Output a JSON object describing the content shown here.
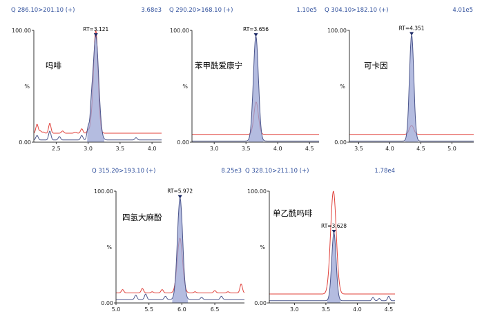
{
  "chart_data": [
    {
      "type": "line",
      "transition": "Q 286.10>201.10 (+)",
      "intensity": "3.68e3",
      "compound": "吗啡",
      "rt_label": "RT=3.121",
      "rt": 3.121,
      "xlim": [
        2.15,
        4.15
      ],
      "xticks": [
        "2.5",
        "3.0",
        "3.5",
        "4.0"
      ],
      "ylim": [
        0,
        100
      ],
      "yticks": [
        "100.00",
        "%",
        "0.00"
      ],
      "series": [
        {
          "color": "#e0403a",
          "baseline": 8,
          "peak_height": 100,
          "peak_x": 3.12,
          "peak_width": 0.035,
          "noise": [
            [
              2.2,
              16
            ],
            [
              2.25,
              10
            ],
            [
              2.3,
              9
            ],
            [
              2.4,
              17
            ],
            [
              2.5,
              8
            ],
            [
              2.6,
              10
            ],
            [
              2.8,
              9
            ],
            [
              2.9,
              12
            ],
            [
              3.0,
              11
            ],
            [
              3.05,
              14
            ]
          ]
        },
        {
          "color": "#4c568c",
          "baseline": 2,
          "peak_height": 95,
          "peak_x": 3.12,
          "peak_width": 0.045,
          "filled": true,
          "noise": [
            [
              2.2,
              6
            ],
            [
              2.4,
              10
            ],
            [
              2.55,
              5
            ],
            [
              2.9,
              6
            ],
            [
              3.0,
              12
            ],
            [
              3.05,
              16
            ],
            [
              3.75,
              4
            ]
          ]
        }
      ]
    },
    {
      "type": "line",
      "transition": "Q 290.20>168.10 (+)",
      "intensity": "1.10e5",
      "compound": "苯甲酰爱康宁",
      "rt_label": "RT=3.656",
      "rt": 3.656,
      "xlim": [
        2.65,
        4.65
      ],
      "xticks": [
        "3.0",
        "3.5",
        "4.0",
        "4.5"
      ],
      "ylim": [
        0,
        100
      ],
      "yticks": [
        "100.00",
        "%",
        "0.00"
      ],
      "series": [
        {
          "color": "#e0403a",
          "baseline": 7,
          "peak_height": 36,
          "peak_x": 3.66,
          "peak_width": 0.035,
          "noise": []
        },
        {
          "color": "#4c568c",
          "baseline": 1,
          "peak_height": 95,
          "peak_x": 3.656,
          "peak_width": 0.04,
          "filled": true,
          "noise": []
        }
      ]
    },
    {
      "type": "line",
      "transition": "Q 304.10>182.10 (+)",
      "intensity": "4.01e5",
      "compound": "可卡因",
      "rt_label": "RT=4.351",
      "rt": 4.351,
      "xlim": [
        3.35,
        5.35
      ],
      "xticks": [
        "3.5",
        "4.0",
        "4.5",
        "5.0"
      ],
      "ylim": [
        0,
        100
      ],
      "yticks": [
        "100.00",
        "%",
        "0.00"
      ],
      "series": [
        {
          "color": "#e0403a",
          "baseline": 7,
          "peak_height": 15,
          "peak_x": 4.35,
          "peak_width": 0.035,
          "noise": []
        },
        {
          "color": "#4c568c",
          "baseline": 1,
          "peak_height": 96,
          "peak_x": 4.351,
          "peak_width": 0.035,
          "filled": true,
          "noise": []
        }
      ]
    },
    {
      "type": "line",
      "transition": "Q 315.20>193.10 (+)",
      "intensity": "8.25e3",
      "compound": "四氢大麻酚",
      "rt_label": "RT=5.972",
      "rt": 5.972,
      "xlim": [
        5.0,
        6.95
      ],
      "xticks": [
        "5.0",
        "5.5",
        "6.0",
        "6.5"
      ],
      "ylim": [
        0,
        100
      ],
      "yticks": [
        "100.00",
        "%",
        "0.00"
      ],
      "series": [
        {
          "color": "#e0403a",
          "baseline": 9,
          "peak_height": 58,
          "peak_x": 5.97,
          "peak_width": 0.04,
          "noise": [
            [
              5.1,
              12
            ],
            [
              5.4,
              13
            ],
            [
              5.55,
              10
            ],
            [
              5.7,
              12
            ],
            [
              6.2,
              10
            ],
            [
              6.5,
              11
            ],
            [
              6.7,
              10
            ],
            [
              6.9,
              17
            ]
          ]
        },
        {
          "color": "#4c568c",
          "baseline": 3,
          "peak_height": 94,
          "peak_x": 5.972,
          "peak_width": 0.04,
          "filled": true,
          "noise": [
            [
              5.3,
              7
            ],
            [
              5.45,
              8
            ],
            [
              5.75,
              6
            ],
            [
              6.3,
              5
            ],
            [
              6.6,
              6
            ]
          ]
        }
      ]
    },
    {
      "type": "line",
      "transition": "Q 328.10>211.10 (+)",
      "intensity": "1.78e4",
      "compound": "单乙酰吗啡",
      "rt_label": "RT=3.628",
      "rt": 3.628,
      "xlim": [
        2.6,
        4.6
      ],
      "xticks": [
        "3.0",
        "3.5",
        "4.0",
        "4.5"
      ],
      "ylim": [
        0,
        100
      ],
      "yticks": [
        "100.00",
        "%",
        "0.00"
      ],
      "series": [
        {
          "color": "#e0403a",
          "baseline": 8,
          "peak_height": 100,
          "peak_x": 3.62,
          "peak_width": 0.045,
          "noise": []
        },
        {
          "color": "#4c568c",
          "baseline": 2,
          "peak_height": 63,
          "peak_x": 3.628,
          "peak_width": 0.035,
          "filled": true,
          "noise": [
            [
              4.25,
              5
            ],
            [
              4.35,
              4
            ],
            [
              4.5,
              6
            ]
          ]
        }
      ]
    }
  ]
}
